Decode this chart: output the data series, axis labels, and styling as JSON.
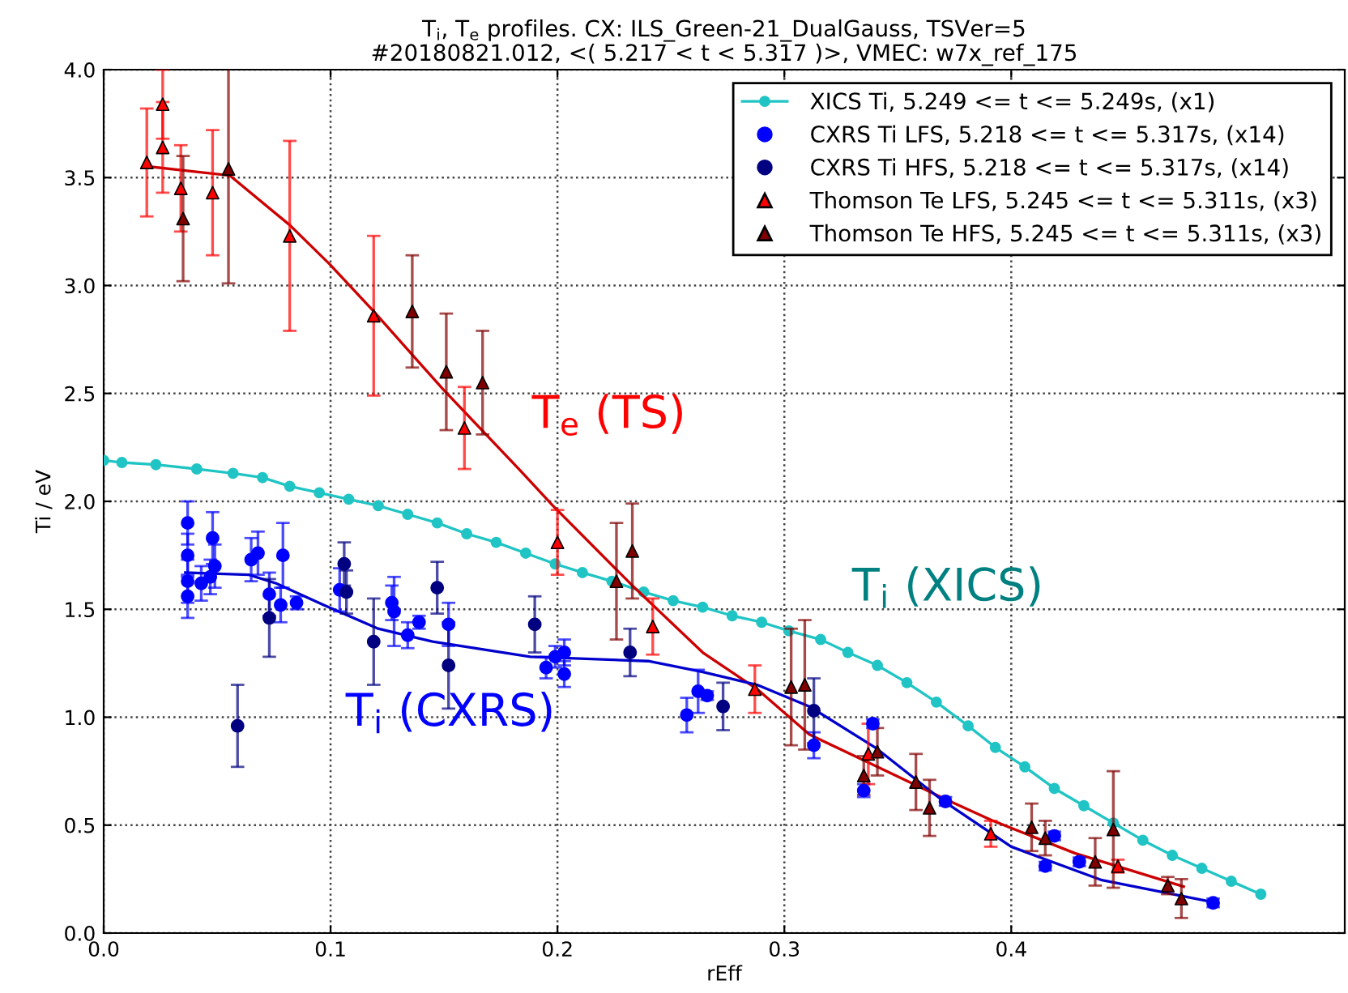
{
  "chart_data": {
    "type": "scatter",
    "title": "T$_{i}$, T$_{e}$ profiles. CX: ILS_Green-21_DualGauss, TSVer=5\n#20180821.012, <( 5.217 < t < 5.317 )>, VMEC: w7x_ref_175",
    "xlabel": "rEff",
    "ylabel": "Ti / eV",
    "xlim": [
      0,
      0.547
    ],
    "xticks": [
      {
        "value": 0,
        "label": "0.0"
      },
      0.1,
      0.2,
      0.3,
      0.4
    ],
    "ylim": [
      0,
      4.0
    ],
    "yticks": [
      {
        "value": 0,
        "label": "0.0"
      },
      0.5,
      {
        "value": 1,
        "label": "1.0"
      },
      1.5,
      {
        "value": 2,
        "label": "2.0"
      },
      2.5,
      {
        "value": 3,
        "label": "3.0"
      },
      3.5,
      {
        "value": 4,
        "label": "4.0"
      }
    ],
    "grid": true,
    "legend": "top right",
    "series": [
      {
        "name": "XICS Ti, 5.249 <= t <= 5.249s, (x1)",
        "type": "line",
        "marker": "circle",
        "color": "#20c4c4",
        "x": [
          0,
          0.008,
          0.023,
          0.041,
          0.057,
          0.07,
          0.082,
          0.095,
          0.108,
          0.121,
          0.134,
          0.147,
          0.16,
          0.173,
          0.186,
          0.199,
          0.211,
          0.224,
          0.238,
          0.251,
          0.264,
          0.277,
          0.29,
          0.302,
          0.316,
          0.328,
          0.341,
          0.354,
          0.367,
          0.381,
          0.393,
          0.406,
          0.419,
          0.432,
          0.445,
          0.458,
          0.471,
          0.484,
          0.497,
          0.51
        ],
        "values": [
          2.19,
          2.18,
          2.17,
          2.15,
          2.13,
          2.11,
          2.07,
          2.04,
          2.01,
          1.98,
          1.94,
          1.9,
          1.85,
          1.81,
          1.76,
          1.71,
          1.67,
          1.63,
          1.58,
          1.54,
          1.51,
          1.47,
          1.44,
          1.4,
          1.36,
          1.3,
          1.24,
          1.16,
          1.07,
          0.96,
          0.86,
          0.77,
          0.67,
          0.59,
          0.51,
          0.43,
          0.36,
          0.3,
          0.24,
          0.18
        ]
      },
      {
        "name": "CXRS Ti LFS, 5.218 <= t <= 5.317s, (x14)",
        "marker": "circle",
        "color": "#0000ff",
        "x": [
          0.037,
          0.037,
          0.037,
          0.037,
          0.043,
          0.048,
          0.049,
          0.047,
          0.065,
          0.068,
          0.073,
          0.078,
          0.079,
          0.085,
          0.104,
          0.127,
          0.128,
          0.134,
          0.139,
          0.152,
          0.195,
          0.199,
          0.203,
          0.203,
          0.257,
          0.262,
          0.266,
          0.313,
          0.339,
          0.335,
          0.371,
          0.415,
          0.419,
          0.43,
          0.489
        ],
        "values": [
          1.9,
          1.75,
          1.63,
          1.56,
          1.62,
          1.83,
          1.7,
          1.65,
          1.73,
          1.76,
          1.57,
          1.52,
          1.75,
          1.53,
          1.59,
          1.53,
          1.49,
          1.38,
          1.44,
          1.43,
          1.23,
          1.28,
          1.3,
          1.2,
          1.01,
          1.12,
          1.1,
          0.87,
          0.97,
          0.66,
          0.61,
          0.31,
          0.45,
          0.33,
          0.14
        ],
        "errors": [
          0.1,
          0.1,
          0.1,
          0.1,
          0.08,
          0.12,
          0.1,
          0.08,
          0.1,
          0.1,
          0.1,
          0.08,
          0.15,
          0.03,
          0.1,
          0.08,
          0.16,
          0.06,
          0.03,
          0.1,
          0.05,
          0.05,
          0.06,
          0.06,
          0.08,
          0.1,
          0.02,
          0.06,
          0.02,
          0.03,
          0.02,
          0.02,
          0.02,
          0.02,
          0.02
        ]
      },
      {
        "name": "CXRS Ti HFS, 5.218 <= t <= 5.317s, (x14)",
        "marker": "circle",
        "color": "#000080",
        "x": [
          0.059,
          0.073,
          0.106,
          0.107,
          0.119,
          0.147,
          0.152,
          0.19,
          0.232,
          0.273,
          0.313
        ],
        "values": [
          0.96,
          1.46,
          1.71,
          1.58,
          1.35,
          1.6,
          1.24,
          1.43,
          1.3,
          1.05,
          1.03
        ],
        "errors": [
          0.19,
          0.18,
          0.1,
          0.1,
          0.2,
          0.12,
          0.2,
          0.13,
          0.11,
          0.11,
          0.15
        ]
      },
      {
        "name": "Thomson Te LFS, 5.245 <= t <= 5.311s, (x3)",
        "marker": "triangle",
        "color": "#ff0000",
        "x": [
          0.019,
          0.026,
          0.026,
          0.034,
          0.048,
          0.082,
          0.119,
          0.159,
          0.2,
          0.242,
          0.287,
          0.337,
          0.391,
          0.447
        ],
        "values": [
          3.57,
          3.84,
          3.64,
          3.45,
          3.43,
          3.23,
          2.86,
          2.34,
          1.81,
          1.42,
          1.13,
          0.83,
          0.46,
          0.31
        ],
        "errors": [
          0.25,
          0.16,
          0.21,
          0.2,
          0.29,
          0.44,
          0.37,
          0.19,
          0.15,
          0.13,
          0.11,
          0.14,
          0.06,
          0.03
        ]
      },
      {
        "name": "Thomson Te HFS, 5.245 <= t <= 5.311s, (x3)",
        "marker": "triangle",
        "color": "#800000",
        "x": [
          0.035,
          0.055,
          0.136,
          0.151,
          0.167,
          0.226,
          0.233,
          0.303,
          0.309,
          0.335,
          0.341,
          0.358,
          0.364,
          0.409,
          0.415,
          0.437,
          0.445,
          0.469,
          0.475
        ],
        "values": [
          3.31,
          3.54,
          2.88,
          2.6,
          2.55,
          1.63,
          1.77,
          1.14,
          1.15,
          0.73,
          0.84,
          0.7,
          0.58,
          0.49,
          0.44,
          0.33,
          0.48,
          0.22,
          0.16
        ],
        "errors": [
          0.29,
          0.53,
          0.26,
          0.27,
          0.24,
          0.27,
          0.22,
          0.27,
          0.3,
          0.09,
          0.11,
          0.13,
          0.13,
          0.11,
          0.08,
          0.11,
          0.27,
          0.04,
          0.09
        ]
      },
      {
        "type": "line",
        "marker": "none",
        "color": "#cc0000",
        "x": [
          0.021,
          0.0555,
          0.082,
          0.0995,
          0.119,
          0.1495,
          0.183,
          0.198,
          0.233,
          0.264,
          0.288,
          0.311,
          0.335,
          0.371,
          0.392,
          0.428,
          0.476
        ],
        "values": [
          3.55,
          3.51,
          3.28,
          3.1,
          2.88,
          2.52,
          2.15,
          1.98,
          1.61,
          1.3,
          1.13,
          0.92,
          0.8,
          0.62,
          0.52,
          0.37,
          0.215
        ]
      },
      {
        "type": "line",
        "marker": "none",
        "color": "#0000cc",
        "x": [
          0.036,
          0.064,
          0.076,
          0.097,
          0.121,
          0.145,
          0.188,
          0.24,
          0.264,
          0.288,
          0.311,
          0.34,
          0.369,
          0.4,
          0.44,
          0.488
        ],
        "values": [
          1.67,
          1.66,
          1.62,
          1.52,
          1.41,
          1.35,
          1.28,
          1.26,
          1.21,
          1.15,
          1.05,
          0.86,
          0.62,
          0.4,
          0.245,
          0.145
        ]
      }
    ],
    "annotations": [
      "T$_{e}$ (TS)",
      "T$_{i}$ (CXRS)",
      "T$_{i}$ (XICS)"
    ]
  }
}
